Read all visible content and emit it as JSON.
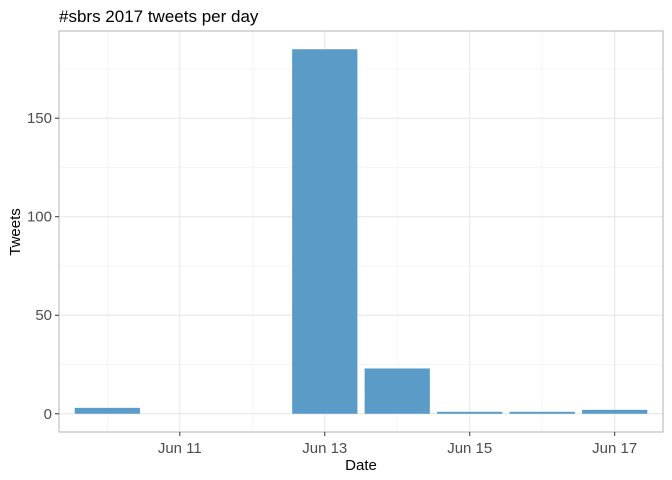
{
  "chart_data": {
    "type": "bar",
    "title": "#sbrs 2017 tweets per day",
    "xlabel": "Date",
    "ylabel": "Tweets",
    "categories": [
      "2017-06-10",
      "2017-06-11",
      "2017-06-12",
      "2017-06-13",
      "2017-06-14",
      "2017-06-15",
      "2017-06-16",
      "2017-06-17"
    ],
    "values": [
      3,
      0,
      0,
      185,
      23,
      1,
      1,
      2
    ],
    "x_ticks": [
      {
        "date": "2017-06-11",
        "label": "Jun 11"
      },
      {
        "date": "2017-06-13",
        "label": "Jun 13"
      },
      {
        "date": "2017-06-15",
        "label": "Jun 15"
      },
      {
        "date": "2017-06-17",
        "label": "Jun 17"
      }
    ],
    "y_ticks": [
      0,
      50,
      100,
      150
    ],
    "y_tick_labels": [
      "0",
      "50",
      "100",
      "150"
    ],
    "ylim": [
      -9.25,
      194.25
    ],
    "xlim": [
      "2017-06-09 08:00",
      "2017-06-17 16:00"
    ],
    "grid": true,
    "colors": {
      "bar": "#5b9bc8",
      "panel_border": "#b3b3b3",
      "grid_major": "#e6e6e6",
      "grid_minor": "#f2f2f2"
    }
  }
}
